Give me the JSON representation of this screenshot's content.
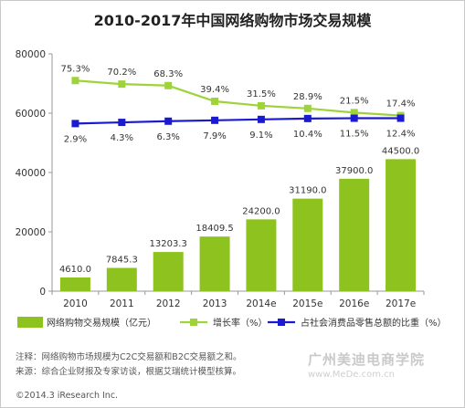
{
  "chart_data": {
    "type": "bar",
    "title": "2010-2017年中国网络购物市场交易规模",
    "categories": [
      "2010",
      "2011",
      "2012",
      "2013",
      "2014e",
      "2015e",
      "2016e",
      "2017e"
    ],
    "ylim": [
      0,
      80000
    ],
    "yticks": [
      0,
      20000,
      40000,
      60000,
      80000
    ],
    "grid": false,
    "series": [
      {
        "name": "网络购物交易规模（亿元）",
        "kind": "bar",
        "color": "#8dc21f",
        "values": [
          4610.0,
          7845.3,
          13203.3,
          18409.5,
          24200.0,
          31190.0,
          37900.0,
          44500.0
        ],
        "labels": [
          "4610.0",
          "7845.3",
          "13203.3",
          "18409.5",
          "24200.0",
          "31190.0",
          "37900.0",
          "44500.0"
        ]
      },
      {
        "name": "增长率（%）",
        "kind": "line",
        "color": "#9ed33a",
        "y_on_left_axis": [
          71000,
          69800,
          69300,
          64000,
          62500,
          61600,
          60200,
          59200
        ],
        "labels": [
          "75.3%",
          "70.2%",
          "68.3%",
          "39.4%",
          "31.5%",
          "28.9%",
          "21.5%",
          "17.4%"
        ]
      },
      {
        "name": "占社会消费品零售总额的比重（%）",
        "kind": "line",
        "color": "#1a1ad1",
        "y_on_left_axis": [
          56500,
          56900,
          57300,
          57600,
          57900,
          58200,
          58300,
          58300
        ],
        "labels": [
          "2.9%",
          "4.3%",
          "6.3%",
          "7.9%",
          "9.1%",
          "10.4%",
          "11.5%",
          "12.4%"
        ]
      }
    ],
    "legend_position": "bottom"
  },
  "notes": [
    "注释：网络购物市场规模为C2C交易额和B2C交易额之和。",
    "来源：综合企业财报及专家访谈，根据艾瑞统计模型核算。"
  ],
  "copyright": "©2014.3 iResearch Inc.",
  "watermark": {
    "cn": "广州美迪电商学院",
    "url": "www.MeDe.com.cn"
  }
}
